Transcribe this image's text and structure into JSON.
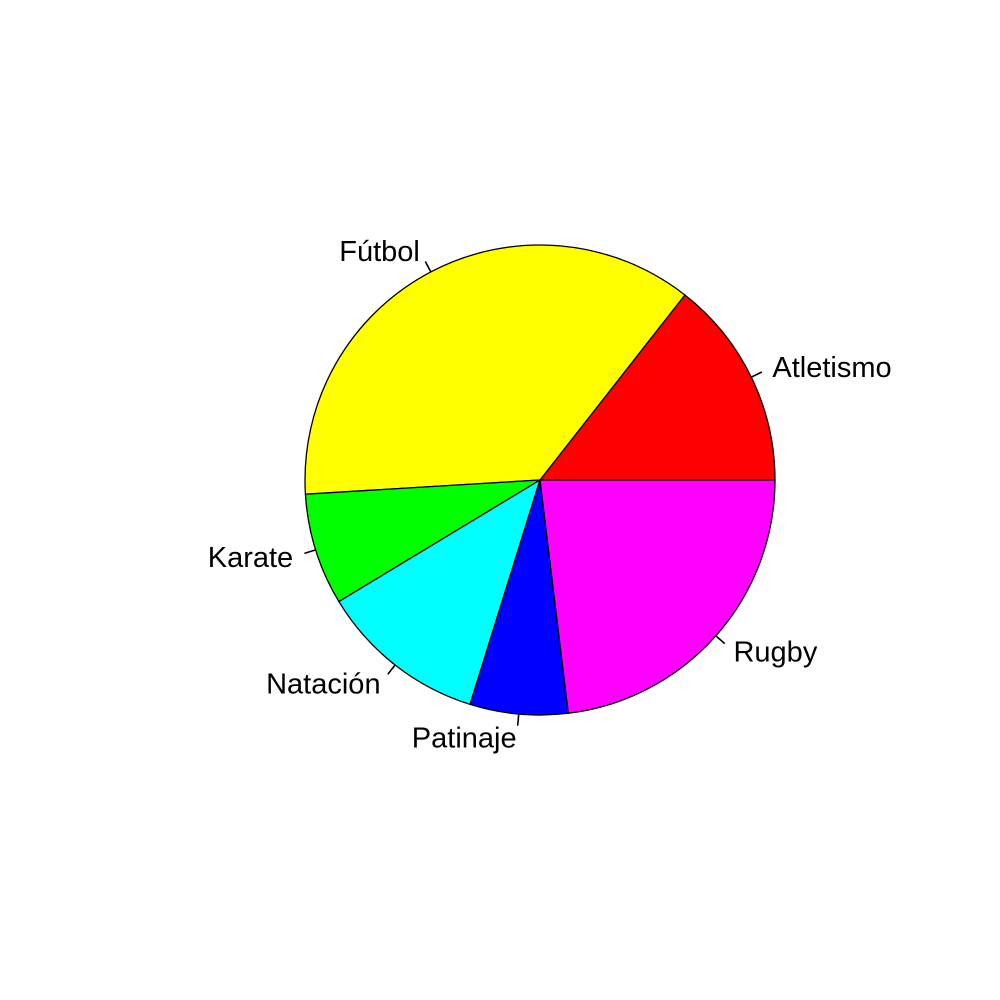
{
  "chart_data": {
    "type": "pie",
    "title": "",
    "start": "3 o'clock",
    "direction": "counterclockwise",
    "slices": [
      {
        "label": "Atletismo",
        "value": 15,
        "color": "#ff0000"
      },
      {
        "label": "Fútbol",
        "value": 38,
        "color": "#ffff00"
      },
      {
        "label": "Karate",
        "value": 8,
        "color": "#00ff00"
      },
      {
        "label": "Natación",
        "value": 12,
        "color": "#00ffff"
      },
      {
        "label": "Patinaje",
        "value": 7,
        "color": "#0000ff"
      },
      {
        "label": "Rugby",
        "value": 24,
        "color": "#ff00ff"
      }
    ]
  }
}
